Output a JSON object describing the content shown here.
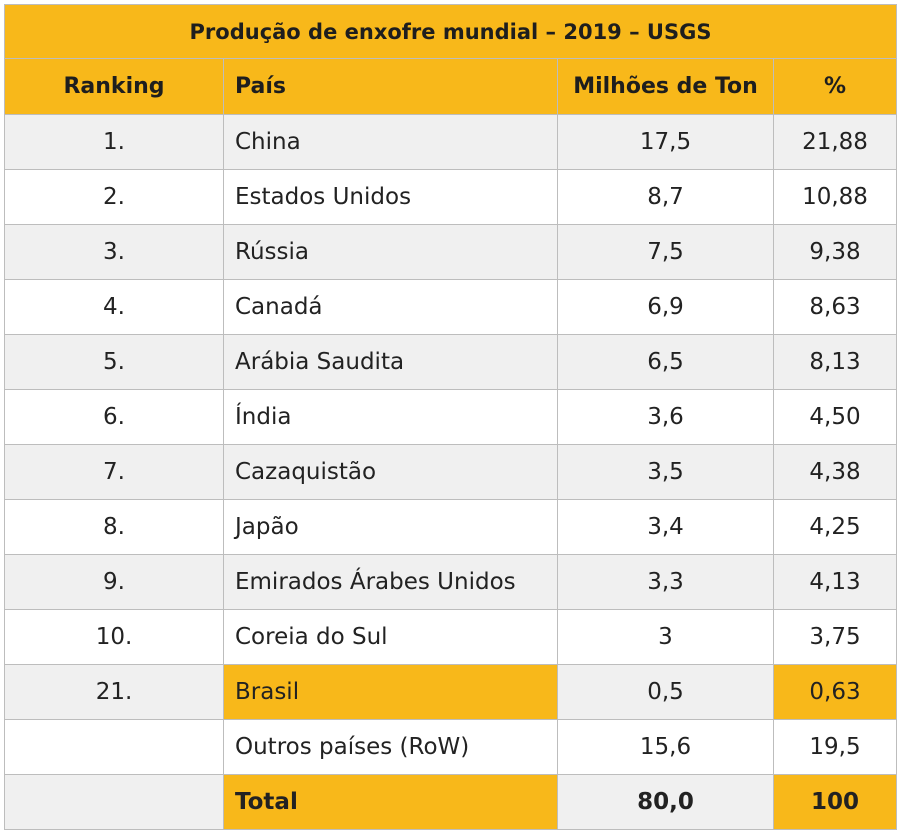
{
  "table": {
    "title": "Produção de enxofre mundial – 2019 – USGS",
    "headers": {
      "ranking": "Ranking",
      "pais": "País",
      "milhoes": "Milhões de Ton",
      "pct": "%"
    },
    "rows": [
      {
        "rank": "1.",
        "country": "China",
        "value": "17,5",
        "pct": "21,88"
      },
      {
        "rank": "2.",
        "country": "Estados Unidos",
        "value": "8,7",
        "pct": "10,88"
      },
      {
        "rank": "3.",
        "country": "Rússia",
        "value": "7,5",
        "pct": "9,38"
      },
      {
        "rank": "4.",
        "country": "Canadá",
        "value": "6,9",
        "pct": "8,63"
      },
      {
        "rank": "5.",
        "country": "Arábia Saudita",
        "value": "6,5",
        "pct": "8,13"
      },
      {
        "rank": "6.",
        "country": "Índia",
        "value": "3,6",
        "pct": "4,50"
      },
      {
        "rank": "7.",
        "country": "Cazaquistão",
        "value": "3,5",
        "pct": "4,38"
      },
      {
        "rank": "8.",
        "country": "Japão",
        "value": "3,4",
        "pct": "4,25"
      },
      {
        "rank": "9.",
        "country": "Emirados Árabes Unidos",
        "value": "3,3",
        "pct": "4,13"
      },
      {
        "rank": "10.",
        "country": "Coreia do Sul",
        "value": "3",
        "pct": "3,75"
      },
      {
        "rank": "21.",
        "country": "Brasil",
        "value": "0,5",
        "pct": "0,63"
      },
      {
        "rank": "",
        "country": "Outros países (RoW)",
        "value": "15,6",
        "pct": "19,5"
      },
      {
        "rank": "",
        "country": "Total",
        "value": "80,0",
        "pct": "100"
      }
    ]
  },
  "colors": {
    "accent": "#f8b81a",
    "zebra": "#f0f0f0",
    "border": "#bdbdbd"
  }
}
